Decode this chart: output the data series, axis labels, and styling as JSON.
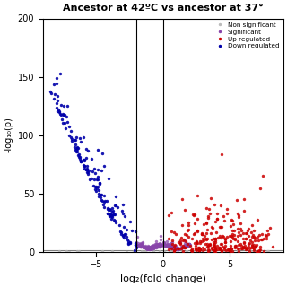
{
  "title": "Ancestor at 42ºC vs ancestor at 37°",
  "xlabel": "log₂(fold change)",
  "ylabel": "-log₁₀(p)",
  "xlim": [
    -9,
    9
  ],
  "ylim": [
    0,
    200
  ],
  "yticks": [
    0,
    50,
    100,
    150,
    200
  ],
  "xticks": [
    -5,
    0,
    5
  ],
  "hline_y": 1.5,
  "vline_x1": -2.0,
  "vline_x2": 0.0,
  "legend_labels": [
    "Non significant",
    "Significant",
    "Up regulated",
    "Down regulated"
  ],
  "legend_colors": [
    "#bbbbbb",
    "#8844aa",
    "#cc0000",
    "#0000aa"
  ],
  "background_color": "#ffffff",
  "point_size": 6,
  "seed": 123
}
